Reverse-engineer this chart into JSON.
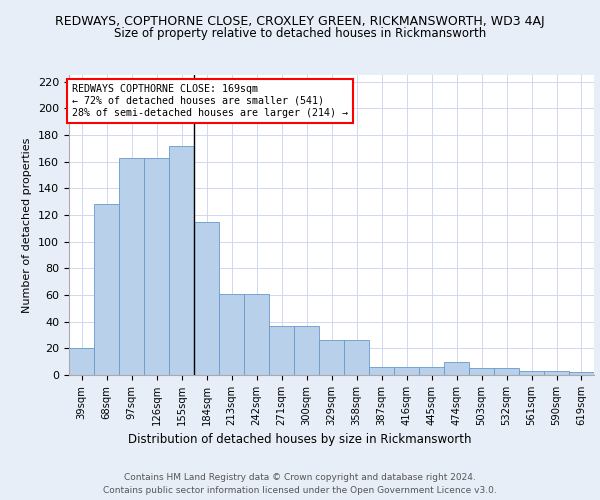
{
  "title1": "REDWAYS, COPTHORNE CLOSE, CROXLEY GREEN, RICKMANSWORTH, WD3 4AJ",
  "title2": "Size of property relative to detached houses in Rickmansworth",
  "xlabel": "Distribution of detached houses by size in Rickmansworth",
  "ylabel": "Number of detached properties",
  "categories": [
    "39sqm",
    "68sqm",
    "97sqm",
    "126sqm",
    "155sqm",
    "184sqm",
    "213sqm",
    "242sqm",
    "271sqm",
    "300sqm",
    "329sqm",
    "358sqm",
    "387sqm",
    "416sqm",
    "445sqm",
    "474sqm",
    "503sqm",
    "532sqm",
    "561sqm",
    "590sqm",
    "619sqm"
  ],
  "bar_heights": [
    20,
    128,
    163,
    163,
    172,
    115,
    61,
    61,
    37,
    37,
    26,
    26,
    6,
    6,
    6,
    10,
    5,
    5,
    3,
    3,
    2
  ],
  "centers": [
    39,
    68,
    97,
    126,
    155,
    184,
    213,
    242,
    271,
    300,
    329,
    358,
    387,
    416,
    445,
    474,
    503,
    532,
    561,
    590,
    619
  ],
  "edges": [
    24.5,
    53.5,
    82.5,
    111.5,
    140.5,
    169.5,
    198.5,
    227.5,
    256.5,
    285.5,
    314.5,
    343.5,
    372.5,
    401.5,
    430.5,
    459.5,
    488.5,
    517.5,
    546.5,
    575.5,
    604.5,
    633.5
  ],
  "bar_color": "#b8d0ea",
  "bar_edge_color": "#6699cc",
  "vline_x": 169,
  "annotation_text": "REDWAYS COPTHORNE CLOSE: 169sqm\n← 72% of detached houses are smaller (541)\n28% of semi-detached houses are larger (214) →",
  "ylim": [
    0,
    225
  ],
  "yticks": [
    0,
    20,
    40,
    60,
    80,
    100,
    120,
    140,
    160,
    180,
    200,
    220
  ],
  "footer1": "Contains HM Land Registry data © Crown copyright and database right 2024.",
  "footer2": "Contains public sector information licensed under the Open Government Licence v3.0.",
  "bg_color": "#e8eef8",
  "plot_bg_color": "#ffffff",
  "grid_color": "#d0d8f0"
}
